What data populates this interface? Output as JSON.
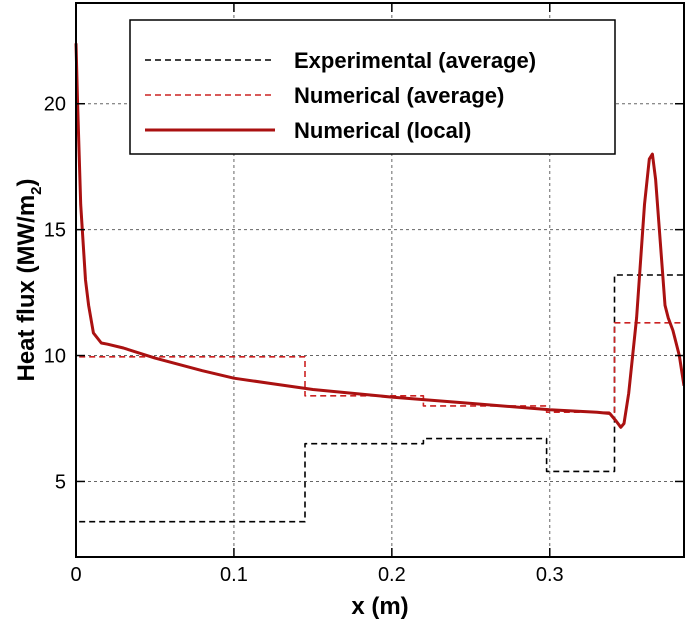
{
  "chart_data": {
    "type": "line",
    "title": "",
    "xlabel": "x (m)",
    "ylabel_main": "Heat flux (MW/m",
    "ylabel_sub": "2",
    "ylabel_close": ")",
    "xlim": [
      0,
      0.385
    ],
    "ylim": [
      2.0,
      24.0
    ],
    "x_ticks": [
      0,
      0.1,
      0.2,
      0.3
    ],
    "x_tick_labels": [
      "0",
      "0.1",
      "0.2",
      "0.3"
    ],
    "y_ticks": [
      5,
      10,
      15,
      20
    ],
    "y_tick_labels": [
      "5",
      "10",
      "15",
      "20"
    ],
    "grid": true,
    "legend_position": "top-right",
    "series": [
      {
        "name": "Experimental (average)",
        "style": "dashed",
        "color": "#000000",
        "step": true,
        "x": [
          0.002,
          0.145,
          0.145,
          0.22,
          0.22,
          0.298,
          0.298,
          0.341,
          0.341,
          0.385
        ],
        "y": [
          3.4,
          3.4,
          6.5,
          6.5,
          6.7,
          6.7,
          5.4,
          5.4,
          13.2,
          13.2
        ]
      },
      {
        "name": "Numerical (average)",
        "style": "dashed",
        "color": "#cc2222",
        "step": true,
        "x": [
          0.002,
          0.145,
          0.145,
          0.22,
          0.22,
          0.298,
          0.298,
          0.341,
          0.341,
          0.385
        ],
        "y": [
          9.95,
          9.95,
          8.4,
          8.4,
          8.0,
          8.0,
          7.75,
          7.75,
          11.3,
          11.3
        ]
      },
      {
        "name": "Numerical (local)",
        "style": "solid",
        "color": "#aa1111",
        "step": false,
        "x": [
          0.0,
          0.001,
          0.003,
          0.006,
          0.008,
          0.011,
          0.016,
          0.02,
          0.03,
          0.05,
          0.08,
          0.1,
          0.15,
          0.2,
          0.25,
          0.3,
          0.33,
          0.338,
          0.342,
          0.345,
          0.347,
          0.35,
          0.355,
          0.36,
          0.363,
          0.365,
          0.367,
          0.37,
          0.373,
          0.375,
          0.378,
          0.382,
          0.385
        ],
        "y": [
          22.4,
          20.0,
          16.0,
          13.0,
          12.0,
          10.9,
          10.5,
          10.45,
          10.3,
          9.9,
          9.4,
          9.1,
          8.65,
          8.35,
          8.1,
          7.85,
          7.75,
          7.7,
          7.4,
          7.15,
          7.3,
          8.5,
          11.5,
          16.0,
          17.8,
          18.0,
          17.0,
          14.5,
          12.0,
          11.5,
          11.0,
          10.0,
          8.8
        ]
      }
    ]
  }
}
